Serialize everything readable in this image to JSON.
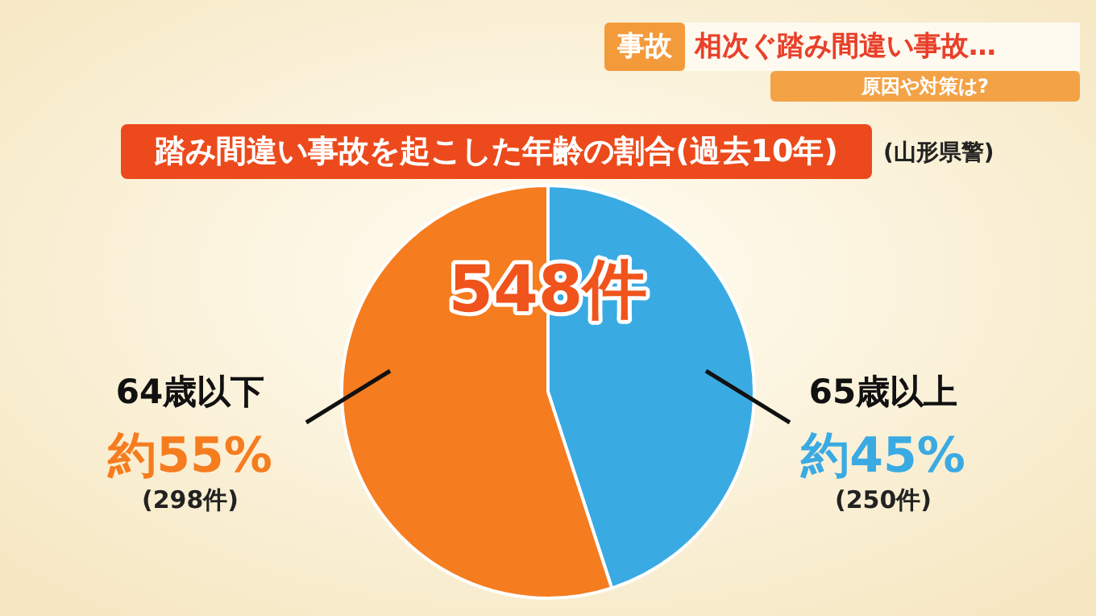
{
  "chart_data": {
    "type": "pie",
    "title": "踏み間違い事故を起こした年齢の割合(過去10年)",
    "categories": [
      "65歳以上",
      "64歳以下"
    ],
    "values": [
      45,
      55
    ],
    "colors": [
      "#3aaae3",
      "#f57c1f"
    ],
    "value_labels": [
      "約45%",
      "約55%"
    ],
    "annotations": [
      "事故",
      "相次ぐ踏み間違い事故…",
      "原因や対策は?",
      "(山形県警)",
      "548件",
      "(250件)",
      "(298件)"
    ]
  }
}
